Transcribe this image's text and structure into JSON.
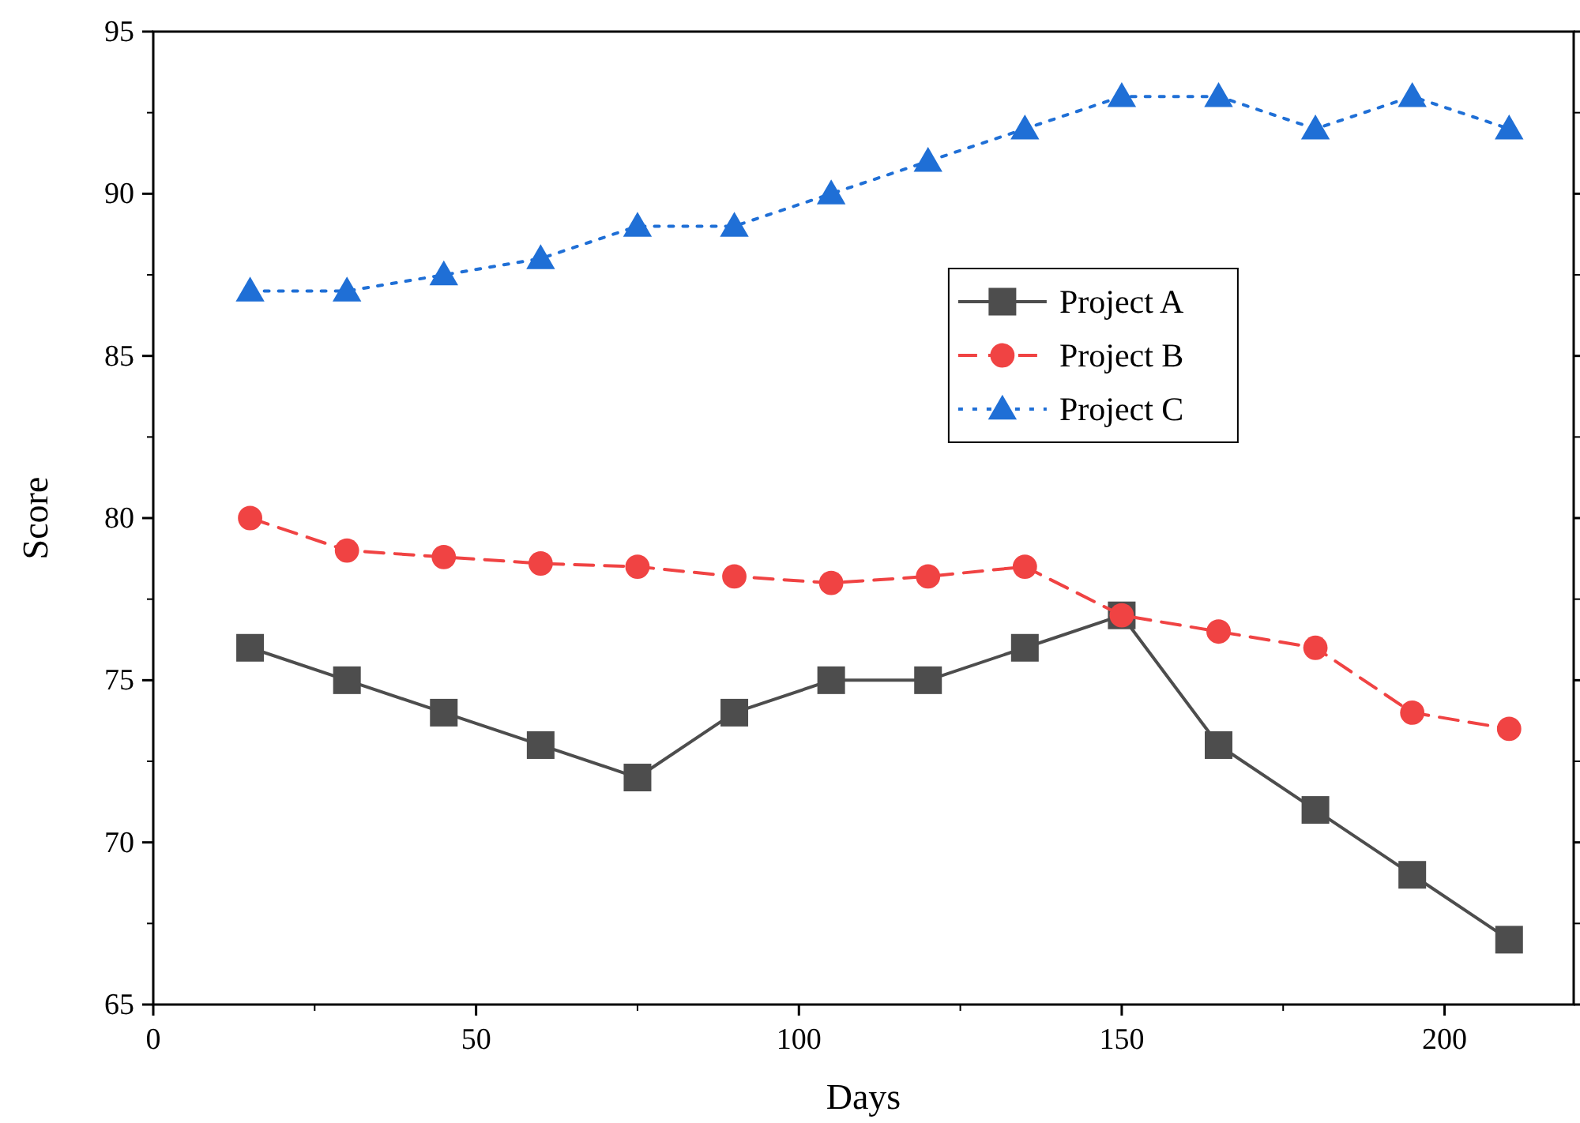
{
  "chart_data": {
    "type": "line",
    "xlabel": "Days",
    "ylabel": "Score",
    "x": [
      15,
      30,
      45,
      60,
      75,
      90,
      105,
      120,
      135,
      150,
      165,
      180,
      195,
      210
    ],
    "xlim": [
      0,
      220
    ],
    "xticks": [
      0,
      50,
      100,
      150,
      200
    ],
    "ylim": [
      65,
      95
    ],
    "yticks": [
      65,
      70,
      75,
      80,
      85,
      90,
      95
    ],
    "grid": false,
    "legend": "top right",
    "series": [
      {
        "name": "Project A",
        "color": "#4d4d4d",
        "marker": "square",
        "line_style": "solid",
        "values": [
          76,
          75,
          74,
          73,
          72,
          74,
          75,
          75,
          76,
          77,
          73,
          71,
          69,
          67
        ]
      },
      {
        "name": "Project B",
        "color": "#f04343",
        "marker": "circle",
        "line_style": "dashed",
        "values": [
          80,
          79,
          78.8,
          78.6,
          78.5,
          78.2,
          78,
          78.2,
          78.5,
          77,
          76.5,
          76,
          74,
          73.5
        ]
      },
      {
        "name": "Project C",
        "color": "#1f6fd6",
        "marker": "triangle",
        "line_style": "dotted",
        "values": [
          87,
          87,
          87.5,
          88,
          89,
          89,
          90,
          91,
          92,
          93,
          93,
          92,
          93,
          92
        ]
      }
    ]
  }
}
